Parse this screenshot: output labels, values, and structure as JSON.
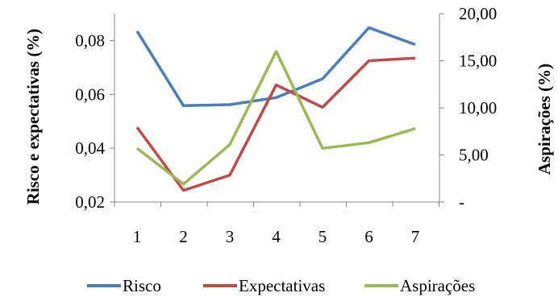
{
  "chart_data": {
    "type": "line",
    "title": "",
    "x": [
      1,
      2,
      3,
      4,
      5,
      6,
      7
    ],
    "x_tick_labels": [
      "1",
      "2",
      "3",
      "4",
      "5",
      "6",
      "7"
    ],
    "ylabel_left": "Risco e expectativas (%)",
    "ylabel_right": "Aspirações (%)",
    "ylim_left": [
      0.02,
      0.09
    ],
    "yticks_left": [
      0.02,
      0.04,
      0.06,
      0.08
    ],
    "ytick_labels_left": [
      "0,02",
      "0,04",
      "0,06",
      "0,08"
    ],
    "ylim_right": [
      0,
      20
    ],
    "yticks_right": [
      0,
      5,
      10,
      15,
      20
    ],
    "ytick_labels_right": [
      "-",
      "5,00",
      "10,00",
      "15,00",
      "20,00"
    ],
    "grid": false,
    "legend_position": "bottom",
    "series": [
      {
        "name": "Risco",
        "axis": "left",
        "color": "#4a7ebb",
        "values": [
          0.0835,
          0.0558,
          0.0562,
          0.0588,
          0.0658,
          0.0848,
          0.0785
        ]
      },
      {
        "name": "Expectativas",
        "axis": "left",
        "color": "#be4b48",
        "values": [
          0.0478,
          0.0243,
          0.03,
          0.0635,
          0.0552,
          0.0725,
          0.0735
        ]
      },
      {
        "name": "Aspirações",
        "axis": "right",
        "color": "#98b954",
        "values": [
          5.7,
          1.9,
          6.1,
          16.0,
          5.7,
          6.3,
          7.8
        ]
      }
    ]
  }
}
